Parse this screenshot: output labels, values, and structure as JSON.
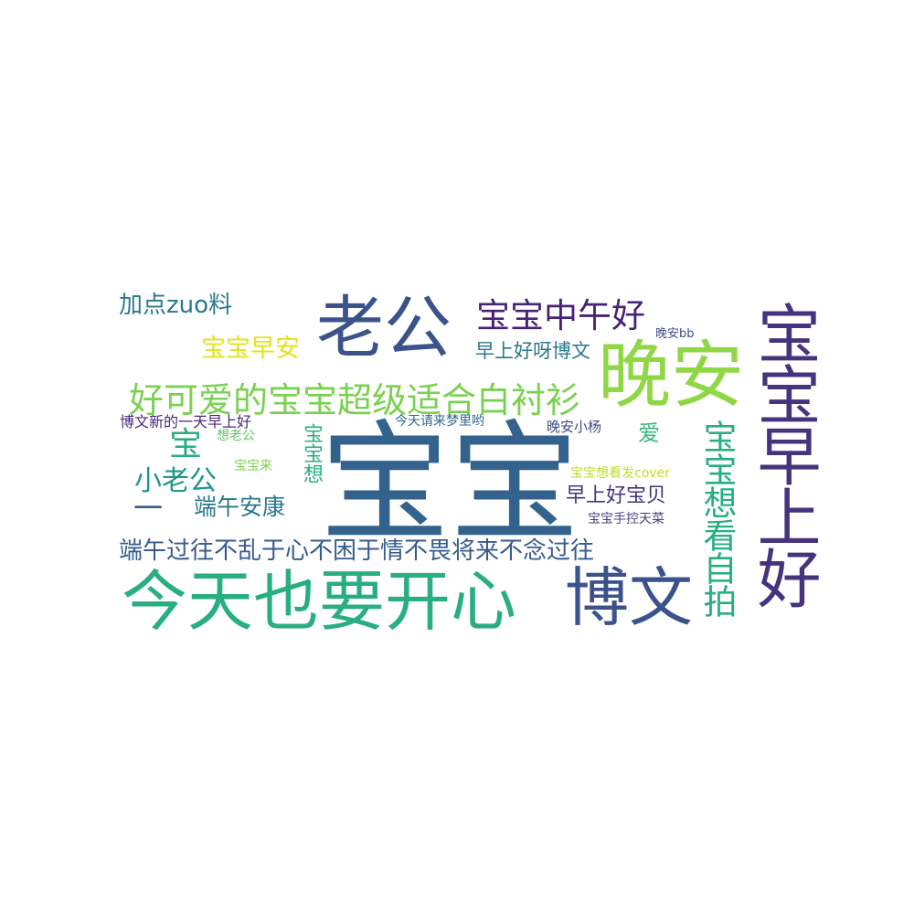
{
  "palette": [
    "#440154",
    "#3b528b",
    "#21918c",
    "#5ec962",
    "#fde725"
  ],
  "words": [
    {
      "text": "宝宝",
      "color": "#33638d"
    },
    {
      "text": "今天也要开心",
      "color": "#29af7f"
    },
    {
      "text": "老公",
      "color": "#3b528b"
    },
    {
      "text": "晚安",
      "color": "#8fd744"
    },
    {
      "text": "博文",
      "color": "#3b528b"
    },
    {
      "text": "宝宝早上好",
      "color": "#46337e"
    },
    {
      "text": "宝宝中午好",
      "color": "#482374"
    },
    {
      "text": "好可爱的宝宝超级适合白衬衫",
      "color": "#7ad151"
    },
    {
      "text": "宝宝想看自拍",
      "color": "#29af7f"
    },
    {
      "text": "端午过往不乱于心不困于情不畏将来不念过往",
      "color": "#365c8d"
    },
    {
      "text": "小老公",
      "color": "#1f968b"
    },
    {
      "text": "宝",
      "color": "#29af7f"
    },
    {
      "text": "一",
      "color": "#365c8d"
    },
    {
      "text": "端午安康",
      "color": "#2a788e"
    },
    {
      "text": "宝宝早安",
      "color": "#e3e418"
    },
    {
      "text": "加点zuo料",
      "color": "#2a788e"
    },
    {
      "text": "早上好呀博文",
      "color": "#2a788e"
    },
    {
      "text": "早上好宝贝",
      "color": "#46337e"
    },
    {
      "text": "宝宝想",
      "color": "#29af7f"
    },
    {
      "text": "爱",
      "color": "#35b779"
    },
    {
      "text": "博文新的一天早上好",
      "color": "#482878"
    },
    {
      "text": "今天请来梦里哟",
      "color": "#31688e"
    },
    {
      "text": "晚安小杨",
      "color": "#3e4a89"
    },
    {
      "text": "想老公",
      "color": "#5ec962"
    },
    {
      "text": "宝宝来",
      "color": "#7ad151"
    },
    {
      "text": "宝宝想看发cover",
      "color": "#bddf26"
    },
    {
      "text": "宝宝手控天菜",
      "color": "#404688"
    },
    {
      "text": "晚安bb",
      "color": "#3e4a89"
    }
  ]
}
